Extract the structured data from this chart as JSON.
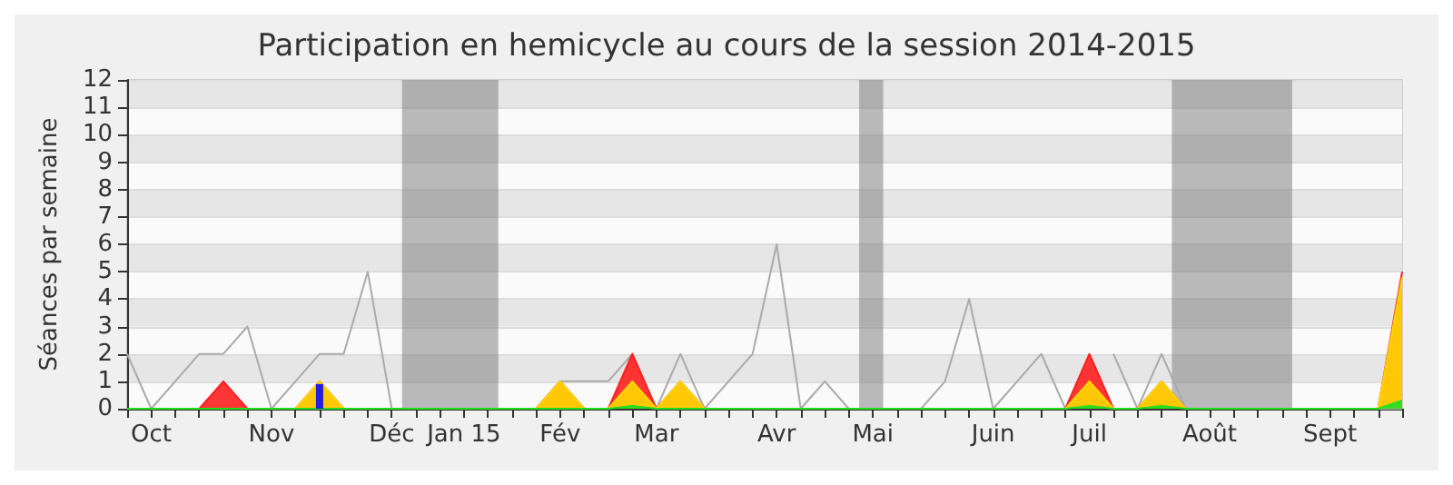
{
  "chart_data": {
    "type": "area",
    "title": "Participation en hemicycle au cours de la session 2014-2015",
    "ylabel": "Séances par semaine",
    "x": [
      "2014-09-29",
      "2014-10-06",
      "2014-10-13",
      "2014-10-20",
      "2014-10-27",
      "2014-11-03",
      "2014-11-10",
      "2014-11-17",
      "2014-11-24",
      "2014-12-01",
      "2014-12-08",
      "2014-12-15",
      "2014-12-22",
      "2014-12-29",
      "2015-01-05",
      "2015-01-12",
      "2015-01-19",
      "2015-01-26",
      "2015-02-02",
      "2015-02-09",
      "2015-02-16",
      "2015-02-23",
      "2015-03-02",
      "2015-03-09",
      "2015-03-16",
      "2015-03-23",
      "2015-03-30",
      "2015-04-06",
      "2015-04-13",
      "2015-04-20",
      "2015-04-27",
      "2015-05-04",
      "2015-05-11",
      "2015-05-18",
      "2015-05-25",
      "2015-06-01",
      "2015-06-08",
      "2015-06-15",
      "2015-06-22",
      "2015-06-29",
      "2015-07-06",
      "2015-07-13",
      "2015-07-20",
      "2015-07-27",
      "2015-08-03",
      "2015-08-10",
      "2015-08-17",
      "2015-08-24",
      "2015-08-31",
      "2015-09-07",
      "2015-09-14",
      "2015-09-21",
      "2015-09-28",
      "2015-10-05"
    ],
    "xlim": [
      "2014-09-29",
      "2015-10-05"
    ],
    "xticks": [
      {
        "value": "2014-09-29",
        "label": null
      },
      {
        "value": "2014-10-06",
        "label": "Oct"
      },
      {
        "value": "2014-10-13",
        "label": null
      },
      {
        "value": "2014-10-20",
        "label": null
      },
      {
        "value": "2014-10-27",
        "label": null
      },
      {
        "value": "2014-11-03",
        "label": null
      },
      {
        "value": "2014-11-10",
        "label": "Nov"
      },
      {
        "value": "2014-11-17",
        "label": null
      },
      {
        "value": "2014-11-24",
        "label": null
      },
      {
        "value": "2014-12-01",
        "label": null
      },
      {
        "value": "2014-12-08",
        "label": null
      },
      {
        "value": "2014-12-15",
        "label": "Déc"
      },
      {
        "value": "2014-12-22",
        "label": null
      },
      {
        "value": "2014-12-29",
        "label": null
      },
      {
        "value": "2015-01-05",
        "label": "Jan 15"
      },
      {
        "value": "2015-01-12",
        "label": null
      },
      {
        "value": "2015-01-19",
        "label": null
      },
      {
        "value": "2015-01-26",
        "label": null
      },
      {
        "value": "2015-02-02",
        "label": "Fév"
      },
      {
        "value": "2015-02-09",
        "label": null
      },
      {
        "value": "2015-02-16",
        "label": null
      },
      {
        "value": "2015-02-23",
        "label": null
      },
      {
        "value": "2015-03-02",
        "label": "Mar"
      },
      {
        "value": "2015-03-09",
        "label": null
      },
      {
        "value": "2015-03-16",
        "label": null
      },
      {
        "value": "2015-03-23",
        "label": null
      },
      {
        "value": "2015-03-30",
        "label": null
      },
      {
        "value": "2015-04-06",
        "label": "Avr"
      },
      {
        "value": "2015-04-13",
        "label": null
      },
      {
        "value": "2015-04-20",
        "label": null
      },
      {
        "value": "2015-04-27",
        "label": null
      },
      {
        "value": "2015-05-04",
        "label": "Mai"
      },
      {
        "value": "2015-05-11",
        "label": null
      },
      {
        "value": "2015-05-18",
        "label": null
      },
      {
        "value": "2015-05-25",
        "label": null
      },
      {
        "value": "2015-06-01",
        "label": null
      },
      {
        "value": "2015-06-08",
        "label": "Juin"
      },
      {
        "value": "2015-06-15",
        "label": null
      },
      {
        "value": "2015-06-22",
        "label": null
      },
      {
        "value": "2015-06-29",
        "label": null
      },
      {
        "value": "2015-07-06",
        "label": "Juil"
      },
      {
        "value": "2015-07-13",
        "label": null
      },
      {
        "value": "2015-07-20",
        "label": null
      },
      {
        "value": "2015-07-27",
        "label": null
      },
      {
        "value": "2015-08-03",
        "label": null
      },
      {
        "value": "2015-08-10",
        "label": "Août"
      },
      {
        "value": "2015-08-17",
        "label": null
      },
      {
        "value": "2015-08-24",
        "label": null
      },
      {
        "value": "2015-08-31",
        "label": null
      },
      {
        "value": "2015-09-07",
        "label": null
      },
      {
        "value": "2015-09-14",
        "label": "Sept"
      },
      {
        "value": "2015-09-21",
        "label": null
      },
      {
        "value": "2015-09-28",
        "label": null
      },
      {
        "value": "2015-10-05",
        "label": null
      }
    ],
    "ylim": [
      0,
      12
    ],
    "yticks": [
      0,
      1,
      2,
      3,
      4,
      5,
      6,
      7,
      8,
      9,
      10,
      11,
      12
    ],
    "grid": "y",
    "marker": "none",
    "bands": [
      {
        "axis": "x",
        "from": "2014-12-18",
        "to": "2015-01-15",
        "color": "#777777"
      },
      {
        "axis": "x",
        "from": "2015-04-30",
        "to": "2015-05-07",
        "color": "#777777"
      },
      {
        "axis": "x",
        "from": "2015-07-30",
        "to": "2015-09-03",
        "color": "#777777"
      }
    ],
    "series": [
      {
        "type": "line",
        "color": "#aaaaaa",
        "values": [
          2,
          0,
          1,
          2,
          2,
          3,
          0,
          1,
          2,
          2,
          5,
          0,
          0,
          0,
          0,
          0,
          0,
          0,
          1,
          1,
          1,
          2,
          0,
          2,
          0,
          1,
          2,
          6,
          0,
          1,
          0,
          0,
          0,
          0,
          1,
          4,
          0,
          1,
          2,
          0,
          null,
          2,
          0,
          2,
          0,
          0,
          0,
          0,
          0,
          0,
          0,
          0,
          0,
          0
        ]
      },
      {
        "color": "#ff2020",
        "values": [
          0,
          0,
          0,
          0,
          1,
          0,
          0,
          0,
          1,
          0,
          0,
          0,
          0,
          0,
          0,
          0,
          0,
          0,
          1,
          0,
          0,
          2,
          0,
          1,
          0,
          0,
          0,
          0,
          0,
          0,
          0,
          0,
          0,
          0,
          0,
          0,
          0,
          0,
          0,
          0,
          2,
          0,
          0,
          1,
          0,
          0,
          0,
          0,
          0,
          0,
          0,
          0,
          0,
          5
        ]
      },
      {
        "color": "#ffd700",
        "values": [
          0,
          0,
          0,
          0,
          0,
          0,
          0,
          0,
          1,
          0,
          0,
          0,
          0,
          0,
          0,
          0,
          0,
          0,
          1,
          0,
          0,
          1,
          0,
          1,
          0,
          0,
          0,
          0,
          0,
          0,
          0,
          0,
          0,
          0,
          0,
          0,
          0,
          0,
          0,
          0,
          1,
          0,
          0,
          1,
          0,
          0,
          0,
          0,
          0,
          0,
          0,
          0,
          0,
          4.8
        ]
      },
      {
        "color": "#22dd22",
        "values": [
          0,
          0,
          0,
          0,
          0,
          0,
          0,
          0,
          0,
          0,
          0,
          0,
          0,
          0,
          0,
          0,
          0,
          0,
          0,
          0,
          0,
          0.1,
          0,
          0,
          0,
          0,
          0,
          0,
          0,
          0,
          0,
          0,
          0,
          0,
          0,
          0,
          0,
          0,
          0,
          0,
          0.1,
          0,
          0,
          0.1,
          0,
          0,
          0,
          0,
          0,
          0,
          0,
          0,
          0,
          0.3
        ]
      },
      {
        "type": "bar",
        "color": "#2020dd",
        "x": [
          "2014-11-24"
        ],
        "values": [
          0.9
        ]
      }
    ]
  }
}
